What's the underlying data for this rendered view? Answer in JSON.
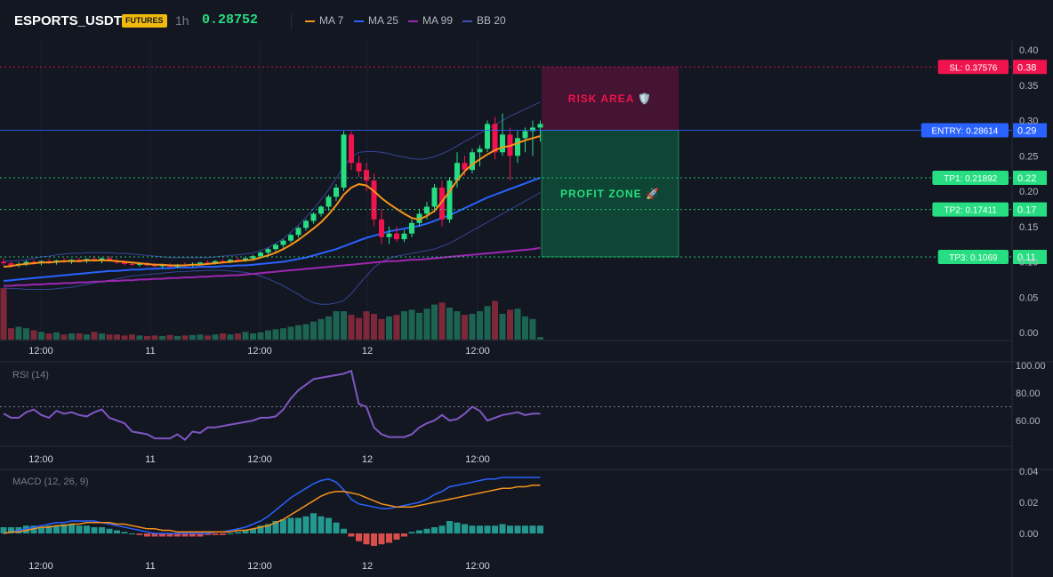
{
  "header": {
    "symbol": "ESPORTS_USDT",
    "badge": "FUTURES",
    "timeframe": "1h",
    "last_price": "0.28752",
    "legend": [
      {
        "label": "MA 7",
        "color": "#f7931a"
      },
      {
        "label": "MA 25",
        "color": "#2962ff"
      },
      {
        "label": "MA 99",
        "color": "#9c27b0"
      },
      {
        "label": "BB 20",
        "color": "#3f51b5"
      }
    ]
  },
  "chart_data": [
    {
      "type": "candlestick",
      "title": "ESPORTS_USDT 1h",
      "ylim": [
        0,
        0.4
      ],
      "y_ticks": [
        "0.40",
        "0.35",
        "0.30",
        "0.25",
        "0.20",
        "0.15",
        "0.10",
        "0.05",
        "0.00"
      ],
      "x_ticks": [
        "12:00",
        "11",
        "12:00",
        "12",
        "12:00"
      ],
      "candles_ohlc": [
        [
          0.1,
          0.105,
          0.095,
          0.098
        ],
        [
          0.098,
          0.1,
          0.092,
          0.095
        ],
        [
          0.095,
          0.1,
          0.092,
          0.097
        ],
        [
          0.097,
          0.102,
          0.094,
          0.1
        ],
        [
          0.1,
          0.103,
          0.096,
          0.098
        ],
        [
          0.098,
          0.102,
          0.095,
          0.101
        ],
        [
          0.101,
          0.104,
          0.097,
          0.099
        ],
        [
          0.099,
          0.103,
          0.096,
          0.102
        ],
        [
          0.102,
          0.105,
          0.098,
          0.1
        ],
        [
          0.1,
          0.104,
          0.097,
          0.103
        ],
        [
          0.103,
          0.106,
          0.099,
          0.101
        ],
        [
          0.101,
          0.105,
          0.098,
          0.104
        ],
        [
          0.104,
          0.108,
          0.1,
          0.102
        ],
        [
          0.102,
          0.106,
          0.098,
          0.105
        ],
        [
          0.105,
          0.108,
          0.1,
          0.101
        ],
        [
          0.101,
          0.104,
          0.097,
          0.099
        ],
        [
          0.099,
          0.102,
          0.095,
          0.097
        ],
        [
          0.097,
          0.1,
          0.094,
          0.096
        ],
        [
          0.096,
          0.099,
          0.093,
          0.097
        ],
        [
          0.097,
          0.1,
          0.094,
          0.095
        ],
        [
          0.095,
          0.098,
          0.092,
          0.094
        ],
        [
          0.094,
          0.097,
          0.091,
          0.095
        ],
        [
          0.095,
          0.098,
          0.092,
          0.093
        ],
        [
          0.093,
          0.097,
          0.091,
          0.096
        ],
        [
          0.096,
          0.099,
          0.093,
          0.095
        ],
        [
          0.095,
          0.099,
          0.093,
          0.097
        ],
        [
          0.097,
          0.1,
          0.095,
          0.099
        ],
        [
          0.099,
          0.102,
          0.096,
          0.098
        ],
        [
          0.098,
          0.102,
          0.096,
          0.101
        ],
        [
          0.101,
          0.104,
          0.098,
          0.1
        ],
        [
          0.1,
          0.104,
          0.098,
          0.103
        ],
        [
          0.103,
          0.106,
          0.1,
          0.102
        ],
        [
          0.102,
          0.106,
          0.1,
          0.105
        ],
        [
          0.105,
          0.11,
          0.103,
          0.108
        ],
        [
          0.108,
          0.115,
          0.106,
          0.113
        ],
        [
          0.113,
          0.12,
          0.11,
          0.118
        ],
        [
          0.118,
          0.126,
          0.115,
          0.124
        ],
        [
          0.124,
          0.132,
          0.12,
          0.13
        ],
        [
          0.13,
          0.14,
          0.127,
          0.138
        ],
        [
          0.138,
          0.15,
          0.134,
          0.148
        ],
        [
          0.148,
          0.16,
          0.144,
          0.158
        ],
        [
          0.158,
          0.17,
          0.154,
          0.168
        ],
        [
          0.168,
          0.18,
          0.164,
          0.178
        ],
        [
          0.178,
          0.195,
          0.172,
          0.192
        ],
        [
          0.192,
          0.21,
          0.186,
          0.205
        ],
        [
          0.205,
          0.285,
          0.2,
          0.28
        ],
        [
          0.28,
          0.285,
          0.23,
          0.24
        ],
        [
          0.24,
          0.25,
          0.22,
          0.228
        ],
        [
          0.23,
          0.24,
          0.2,
          0.215
        ],
        [
          0.215,
          0.225,
          0.15,
          0.16
        ],
        [
          0.16,
          0.175,
          0.125,
          0.135
        ],
        [
          0.135,
          0.15,
          0.125,
          0.14
        ],
        [
          0.14,
          0.15,
          0.128,
          0.132
        ],
        [
          0.132,
          0.145,
          0.128,
          0.14
        ],
        [
          0.14,
          0.16,
          0.135,
          0.155
        ],
        [
          0.155,
          0.175,
          0.15,
          0.168
        ],
        [
          0.168,
          0.185,
          0.16,
          0.178
        ],
        [
          0.178,
          0.21,
          0.17,
          0.205
        ],
        [
          0.205,
          0.215,
          0.15,
          0.16
        ],
        [
          0.16,
          0.22,
          0.155,
          0.215
        ],
        [
          0.215,
          0.255,
          0.205,
          0.24
        ],
        [
          0.24,
          0.25,
          0.222,
          0.23
        ],
        [
          0.23,
          0.26,
          0.225,
          0.255
        ],
        [
          0.255,
          0.265,
          0.235,
          0.26
        ],
        [
          0.26,
          0.3,
          0.255,
          0.295
        ],
        [
          0.295,
          0.305,
          0.245,
          0.255
        ],
        [
          0.255,
          0.31,
          0.25,
          0.28
        ],
        [
          0.28,
          0.29,
          0.215,
          0.25
        ],
        [
          0.25,
          0.285,
          0.24,
          0.275
        ],
        [
          0.275,
          0.29,
          0.255,
          0.285
        ],
        [
          0.285,
          0.3,
          0.25,
          0.29
        ],
        [
          0.29,
          0.3,
          0.27,
          0.295
        ]
      ],
      "ma7_values": [
        0.093,
        0.094,
        0.096,
        0.097,
        0.098,
        0.099,
        0.099,
        0.1,
        0.101,
        0.101,
        0.101,
        0.102,
        0.102,
        0.102,
        0.102,
        0.101,
        0.1,
        0.099,
        0.098,
        0.097,
        0.096,
        0.096,
        0.095,
        0.095,
        0.095,
        0.096,
        0.096,
        0.097,
        0.098,
        0.099,
        0.1,
        0.101,
        0.102,
        0.103,
        0.106,
        0.109,
        0.113,
        0.118,
        0.124,
        0.131,
        0.139,
        0.147,
        0.156,
        0.167,
        0.18,
        0.195,
        0.205,
        0.21,
        0.208,
        0.2,
        0.19,
        0.182,
        0.175,
        0.168,
        0.162,
        0.16,
        0.165,
        0.172,
        0.185,
        0.2,
        0.215,
        0.228,
        0.238,
        0.245,
        0.252,
        0.258,
        0.262,
        0.264,
        0.268,
        0.272,
        0.275,
        0.278
      ],
      "ma25_values": [
        0.073,
        0.074,
        0.075,
        0.076,
        0.077,
        0.078,
        0.079,
        0.08,
        0.081,
        0.082,
        0.083,
        0.084,
        0.085,
        0.086,
        0.087,
        0.087,
        0.088,
        0.089,
        0.089,
        0.09,
        0.09,
        0.091,
        0.091,
        0.092,
        0.092,
        0.092,
        0.093,
        0.093,
        0.093,
        0.094,
        0.094,
        0.095,
        0.095,
        0.096,
        0.097,
        0.098,
        0.099,
        0.1,
        0.102,
        0.104,
        0.106,
        0.109,
        0.112,
        0.115,
        0.118,
        0.122,
        0.126,
        0.13,
        0.134,
        0.137,
        0.14,
        0.143,
        0.145,
        0.147,
        0.149,
        0.151,
        0.154,
        0.158,
        0.162,
        0.166,
        0.171,
        0.176,
        0.181,
        0.186,
        0.191,
        0.195,
        0.199,
        0.203,
        0.207,
        0.211,
        0.215,
        0.219
      ],
      "ma99_values": [
        0.066,
        0.066,
        0.067,
        0.067,
        0.068,
        0.068,
        0.069,
        0.069,
        0.07,
        0.07,
        0.071,
        0.071,
        0.072,
        0.072,
        0.073,
        0.073,
        0.074,
        0.074,
        0.075,
        0.075,
        0.076,
        0.076,
        0.077,
        0.077,
        0.078,
        0.078,
        0.079,
        0.079,
        0.08,
        0.08,
        0.081,
        0.081,
        0.082,
        0.083,
        0.084,
        0.085,
        0.086,
        0.087,
        0.088,
        0.089,
        0.09,
        0.091,
        0.092,
        0.093,
        0.094,
        0.095,
        0.096,
        0.097,
        0.098,
        0.099,
        0.1,
        0.101,
        0.101,
        0.102,
        0.103,
        0.103,
        0.104,
        0.105,
        0.106,
        0.107,
        0.108,
        0.109,
        0.11,
        0.111,
        0.112,
        0.113,
        0.114,
        0.115,
        0.116,
        0.117,
        0.118,
        0.12
      ],
      "bb_upper_values": [
        0.101,
        0.101,
        0.102,
        0.103,
        0.105,
        0.107,
        0.108,
        0.11,
        0.111,
        0.112,
        0.112,
        0.113,
        0.113,
        0.113,
        0.113,
        0.112,
        0.112,
        0.111,
        0.11,
        0.109,
        0.108,
        0.107,
        0.106,
        0.106,
        0.106,
        0.106,
        0.106,
        0.106,
        0.107,
        0.108,
        0.109,
        0.11,
        0.111,
        0.113,
        0.116,
        0.12,
        0.126,
        0.133,
        0.142,
        0.152,
        0.163,
        0.175,
        0.188,
        0.202,
        0.218,
        0.235,
        0.248,
        0.255,
        0.256,
        0.256,
        0.255,
        0.253,
        0.25,
        0.248,
        0.246,
        0.245,
        0.246,
        0.249,
        0.253,
        0.258,
        0.264,
        0.27,
        0.276,
        0.282,
        0.288,
        0.294,
        0.3,
        0.306,
        0.311,
        0.316,
        0.321,
        0.326
      ],
      "bb_lower_values": [
        0.063,
        0.062,
        0.062,
        0.061,
        0.061,
        0.061,
        0.061,
        0.062,
        0.063,
        0.064,
        0.066,
        0.068,
        0.07,
        0.072,
        0.074,
        0.076,
        0.078,
        0.08,
        0.081,
        0.082,
        0.083,
        0.084,
        0.085,
        0.086,
        0.086,
        0.087,
        0.087,
        0.088,
        0.088,
        0.088,
        0.087,
        0.086,
        0.085,
        0.083,
        0.08,
        0.076,
        0.071,
        0.066,
        0.06,
        0.054,
        0.047,
        0.042,
        0.04,
        0.04,
        0.042,
        0.045,
        0.055,
        0.068,
        0.08,
        0.092,
        0.1,
        0.105,
        0.108,
        0.11,
        0.112,
        0.114,
        0.116,
        0.118,
        0.122,
        0.126,
        0.132,
        0.138,
        0.144,
        0.15,
        0.156,
        0.162,
        0.168,
        0.174,
        0.18,
        0.186,
        0.192,
        0.198
      ],
      "volume_rel": [
        1.0,
        0.22,
        0.25,
        0.22,
        0.18,
        0.15,
        0.12,
        0.14,
        0.1,
        0.12,
        0.12,
        0.1,
        0.15,
        0.12,
        0.1,
        0.1,
        0.08,
        0.1,
        0.08,
        0.07,
        0.08,
        0.07,
        0.09,
        0.07,
        0.08,
        0.09,
        0.1,
        0.08,
        0.1,
        0.12,
        0.1,
        0.12,
        0.15,
        0.12,
        0.14,
        0.18,
        0.2,
        0.22,
        0.25,
        0.28,
        0.3,
        0.35,
        0.4,
        0.45,
        0.55,
        0.55,
        0.48,
        0.42,
        0.55,
        0.5,
        0.4,
        0.45,
        0.48,
        0.55,
        0.58,
        0.52,
        0.6,
        0.68,
        0.72,
        0.62,
        0.55,
        0.48,
        0.5,
        0.55,
        0.65,
        0.75,
        0.5,
        0.58,
        0.6,
        0.45,
        0.4,
        0.05
      ],
      "risk_area": {
        "label": "RISK AREA 🛡️",
        "from": 0.28614,
        "to": 0.37576
      },
      "profit_zone": {
        "label": "PROFIT ZONE 🚀",
        "from": 0.1069,
        "to": 0.28614
      },
      "price_labels": [
        {
          "text": "SL: 0.37576",
          "short": "0.38",
          "value": 0.37576,
          "color": "#f0134d",
          "line": "dotted"
        },
        {
          "text": "ENTRY: 0.28614",
          "short": "0.29",
          "value": 0.28614,
          "color": "#2962ff",
          "line": "solid"
        },
        {
          "text": "TP1: 0.21892",
          "short": "0.22",
          "value": 0.21892,
          "color": "#26de81",
          "line": "dotted"
        },
        {
          "text": "TP2: 0.17411",
          "short": "0.17",
          "value": 0.17411,
          "color": "#26de81",
          "line": "dotted"
        },
        {
          "text": "TP3: 0.1069",
          "short": "0.11",
          "value": 0.1069,
          "color": "#26de81",
          "line": "dotted"
        }
      ]
    },
    {
      "type": "line",
      "title": "RSI (14)",
      "ylim": [
        40,
        100
      ],
      "y_ticks": [
        "100.00",
        "80.00",
        "60.00"
      ],
      "x_ticks": [
        "12:00",
        "11",
        "12:00",
        "12",
        "12:00"
      ],
      "reference_line": 70,
      "values": [
        65,
        62,
        62,
        66,
        68,
        64,
        62,
        67,
        65,
        66,
        64,
        63,
        66,
        68,
        62,
        60,
        58,
        52,
        51,
        50,
        47,
        47,
        47,
        50,
        46,
        52,
        51,
        55,
        55,
        56,
        57,
        58,
        59,
        60,
        62,
        62,
        63,
        68,
        76,
        82,
        86,
        90,
        91,
        92,
        93,
        94,
        96,
        72,
        70,
        55,
        50,
        48,
        48,
        48,
        50,
        55,
        58,
        60,
        64,
        60,
        61,
        65,
        70,
        67,
        60,
        62,
        64,
        65,
        66,
        64,
        65,
        65
      ]
    },
    {
      "type": "line",
      "title": "MACD (12, 26, 9)",
      "ylim": [
        -0.012,
        0.045
      ],
      "y_ticks": [
        "0.04",
        "0.02",
        "0.00"
      ],
      "x_ticks": [
        "12:00",
        "11",
        "12:00",
        "12",
        "12:00"
      ],
      "macd_values": [
        0.0,
        0.001,
        0.002,
        0.003,
        0.004,
        0.005,
        0.006,
        0.007,
        0.007,
        0.008,
        0.008,
        0.008,
        0.008,
        0.007,
        0.006,
        0.005,
        0.004,
        0.003,
        0.002,
        0.001,
        0.0,
        0.0,
        0.0,
        0.0,
        0.0,
        0.0,
        0.0,
        0.0,
        0.001,
        0.001,
        0.002,
        0.003,
        0.004,
        0.006,
        0.008,
        0.011,
        0.015,
        0.019,
        0.023,
        0.026,
        0.029,
        0.032,
        0.034,
        0.035,
        0.033,
        0.028,
        0.022,
        0.019,
        0.018,
        0.017,
        0.016,
        0.016,
        0.017,
        0.018,
        0.019,
        0.02,
        0.022,
        0.025,
        0.027,
        0.03,
        0.031,
        0.032,
        0.033,
        0.034,
        0.035,
        0.035,
        0.036,
        0.036,
        0.036,
        0.036,
        0.036,
        0.036
      ],
      "signal_values": [
        0.0,
        0.001,
        0.001,
        0.002,
        0.003,
        0.004,
        0.004,
        0.005,
        0.005,
        0.006,
        0.006,
        0.007,
        0.007,
        0.007,
        0.007,
        0.006,
        0.006,
        0.005,
        0.004,
        0.003,
        0.003,
        0.002,
        0.002,
        0.001,
        0.001,
        0.001,
        0.001,
        0.001,
        0.001,
        0.001,
        0.001,
        0.002,
        0.002,
        0.003,
        0.004,
        0.005,
        0.007,
        0.009,
        0.012,
        0.015,
        0.018,
        0.021,
        0.024,
        0.026,
        0.027,
        0.027,
        0.026,
        0.025,
        0.023,
        0.021,
        0.019,
        0.018,
        0.017,
        0.017,
        0.017,
        0.018,
        0.019,
        0.02,
        0.021,
        0.022,
        0.023,
        0.024,
        0.025,
        0.026,
        0.027,
        0.028,
        0.029,
        0.029,
        0.03,
        0.03,
        0.031,
        0.031
      ],
      "histogram_values": [
        0.004,
        0.004,
        0.004,
        0.005,
        0.005,
        0.004,
        0.005,
        0.005,
        0.006,
        0.006,
        0.005,
        0.005,
        0.004,
        0.004,
        0.003,
        0.002,
        0.001,
        0.0,
        -0.001,
        -0.002,
        -0.002,
        -0.002,
        -0.002,
        -0.002,
        -0.002,
        -0.002,
        -0.002,
        -0.001,
        -0.001,
        -0.001,
        0.0,
        0.001,
        0.002,
        0.003,
        0.005,
        0.006,
        0.008,
        0.009,
        0.01,
        0.01,
        0.011,
        0.013,
        0.011,
        0.01,
        0.007,
        0.003,
        -0.002,
        -0.005,
        -0.007,
        -0.008,
        -0.007,
        -0.006,
        -0.004,
        -0.002,
        0.001,
        0.002,
        0.003,
        0.004,
        0.005,
        0.008,
        0.007,
        0.006,
        0.005,
        0.005,
        0.005,
        0.005,
        0.006,
        0.005,
        0.005,
        0.005,
        0.005,
        0.005
      ]
    }
  ]
}
